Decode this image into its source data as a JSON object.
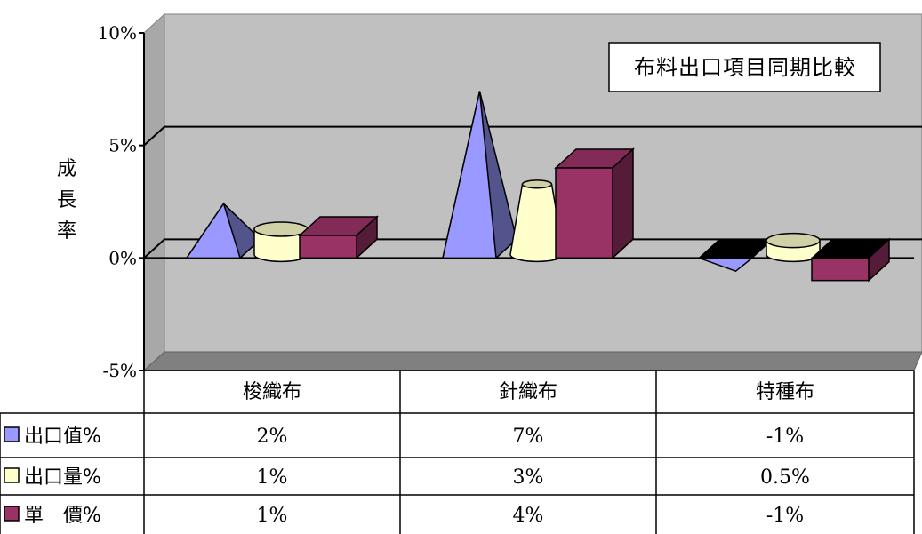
{
  "chart_data": {
    "type": "bar",
    "title": "布料出口項目同期比較",
    "ylabel": "成長率",
    "xlabel": "",
    "ylim": [
      -5,
      10
    ],
    "yticks": [
      "10%",
      "5%",
      "0%",
      "-5%"
    ],
    "categories": [
      "梭織布",
      "針織布",
      "特種布"
    ],
    "series": [
      {
        "name": "出口值%",
        "shape": "pyramid",
        "color": "#9999FF",
        "values": [
          2,
          7,
          -1
        ],
        "labels": [
          "2%",
          "7%",
          "-1%"
        ]
      },
      {
        "name": "出口量%",
        "shape": "cone",
        "color": "#FFFFCC",
        "values": [
          1,
          3,
          0.5
        ],
        "labels": [
          "1%",
          "3%",
          "0.5%"
        ]
      },
      {
        "name": "單　價%",
        "shape": "box",
        "color": "#993366",
        "values": [
          1,
          4,
          -1
        ],
        "labels": [
          "1%",
          "4%",
          "-1%"
        ]
      }
    ],
    "legend": "data-table-left",
    "grid": true
  }
}
